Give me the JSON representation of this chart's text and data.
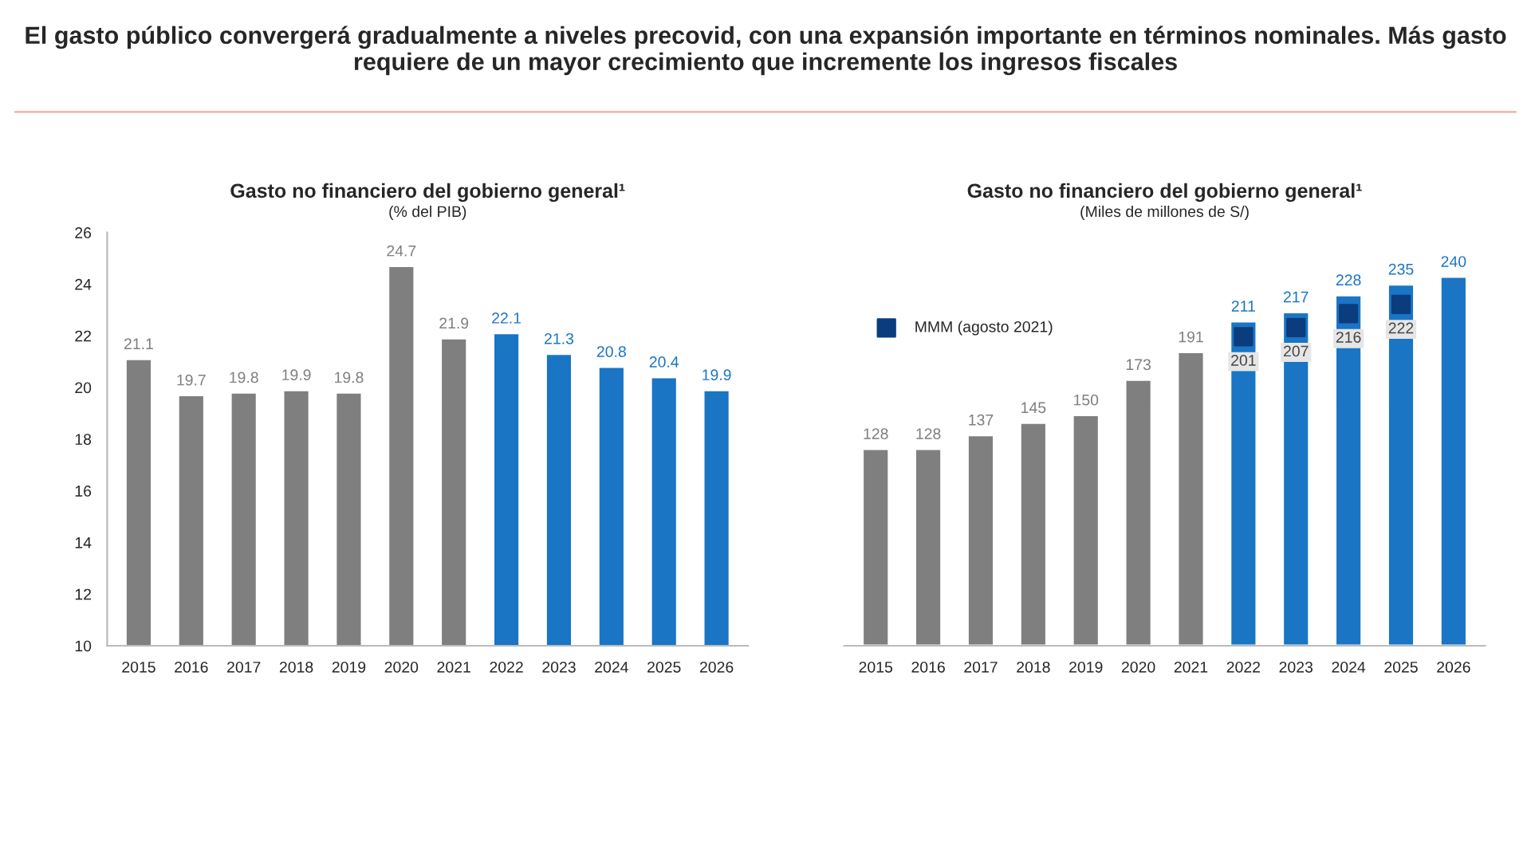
{
  "chart_data": [
    {
      "type": "bar",
      "title": "Gasto no financiero del gobierno general¹",
      "subtitle": "(% del PIB)",
      "annotations": [
        "El gasto público convergerá gradualmente a niveles precovid, con una expansión importante en términos nominales. Más gasto requiere de un mayor crecimiento que incremente los ingresos fiscales"
      ],
      "categories": [
        "2015",
        "2016",
        "2017",
        "2018",
        "2019",
        "2020",
        "2021",
        "2022",
        "2023",
        "2024",
        "2025",
        "2026"
      ],
      "values": [
        21.1,
        19.7,
        19.8,
        19.9,
        19.8,
        24.7,
        21.9,
        22.1,
        21.3,
        20.8,
        20.4,
        19.9
      ],
      "colors": [
        "#7f7f7f",
        "#7f7f7f",
        "#7f7f7f",
        "#7f7f7f",
        "#7f7f7f",
        "#7f7f7f",
        "#7f7f7f",
        "#1a75c4",
        "#1a75c4",
        "#1a75c4",
        "#1a75c4",
        "#1a75c4"
      ],
      "ylim": [
        10,
        26
      ],
      "yticks": [
        10,
        12,
        14,
        16,
        18,
        20,
        22,
        24,
        26
      ],
      "data_labels": true,
      "grid": false
    },
    {
      "type": "bar",
      "title": "Gasto no financiero del gobierno general¹",
      "subtitle": "(Miles de millones de S/)",
      "categories": [
        "2015",
        "2016",
        "2017",
        "2018",
        "2019",
        "2020",
        "2021",
        "2022",
        "2023",
        "2024",
        "2025",
        "2026"
      ],
      "series": [
        {
          "values": [
            128,
            128,
            137,
            145,
            150,
            173,
            191,
            211,
            217,
            228,
            235,
            240
          ],
          "colors": [
            "#7f7f7f",
            "#7f7f7f",
            "#7f7f7f",
            "#7f7f7f",
            "#7f7f7f",
            "#7f7f7f",
            "#7f7f7f",
            "#1a75c4",
            "#1a75c4",
            "#1a75c4",
            "#1a75c4",
            "#1a75c4"
          ]
        },
        {
          "type": "scatter",
          "name": "MMM (agosto 2021)",
          "color": "#0b3d7e",
          "values": [
            null,
            null,
            null,
            null,
            null,
            null,
            null,
            201,
            207,
            216,
            222,
            null
          ]
        }
      ],
      "marker": "square",
      "data_labels": true,
      "legend": "top left",
      "tick_labels": "x",
      "grid": false
    }
  ]
}
